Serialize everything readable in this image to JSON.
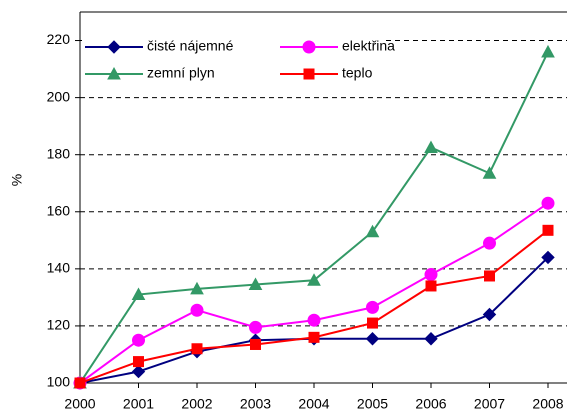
{
  "chart_data": {
    "type": "line",
    "y_label": "%",
    "categories": [
      "2000",
      "2001",
      "2002",
      "2003",
      "2004",
      "2005",
      "2006",
      "2007",
      "2008"
    ],
    "series": [
      {
        "name": "čisté nájemné",
        "color": "#000080",
        "marker": "diamond",
        "values": [
          100,
          104,
          111,
          115,
          115.5,
          115.5,
          115.5,
          124,
          144
        ]
      },
      {
        "name": "elektřina",
        "color": "#ff00ff",
        "marker": "circle",
        "values": [
          100,
          115,
          125.5,
          119.5,
          122,
          126.5,
          138,
          149,
          163
        ]
      },
      {
        "name": "zemní plyn",
        "color": "#339966",
        "marker": "triangle",
        "values": [
          100,
          131,
          133,
          134.5,
          136,
          153,
          182.5,
          173.5,
          216
        ]
      },
      {
        "name": "teplo",
        "color": "#ff0000",
        "marker": "square",
        "values": [
          100,
          107.5,
          112,
          113.5,
          116,
          121,
          134,
          137.5,
          153.5
        ]
      }
    ],
    "ylim": [
      100,
      230
    ],
    "yticks": [
      100,
      120,
      140,
      160,
      180,
      200,
      220
    ],
    "grid": true
  }
}
